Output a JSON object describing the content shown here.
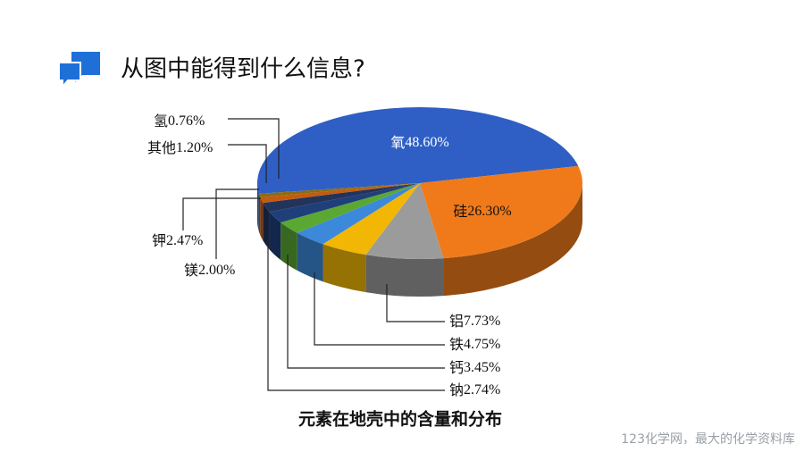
{
  "header": {
    "title": "从图中能得到什么信息?"
  },
  "chart_data": {
    "type": "pie3d",
    "title": "元素在地壳中的含量和分布",
    "categories": [
      "氧",
      "硅",
      "铝",
      "铁",
      "钙",
      "钠",
      "钾",
      "镁",
      "其他",
      "氢"
    ],
    "values": [
      48.6,
      26.3,
      7.73,
      4.75,
      3.45,
      2.74,
      2.47,
      2.0,
      1.2,
      0.76
    ],
    "value_labels": [
      "48.60%",
      "26.30%",
      "7.73%",
      "4.75%",
      "3.45%",
      "2.74%",
      "2.47%",
      "2.00%",
      "1.20%",
      "0.76%"
    ],
    "colors": [
      "#2f5fc4",
      "#f07a1a",
      "#9b9b9b",
      "#f2b705",
      "#3c88da",
      "#5aa832",
      "#1f3f7a",
      "#22345a",
      "#c55a11",
      "#8a6d10"
    ]
  },
  "footer": {
    "text": "123化学网，最大的化学资料库"
  }
}
